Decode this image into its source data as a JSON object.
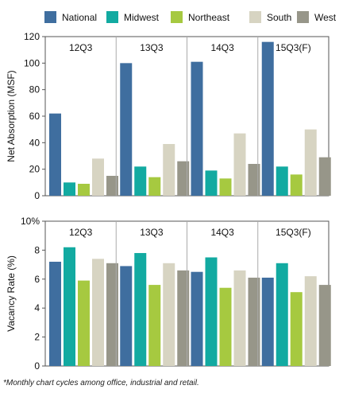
{
  "legend": [
    {
      "name": "National",
      "color": "#3f6e9f"
    },
    {
      "name": "Midwest",
      "color": "#12aaa1"
    },
    {
      "name": "Northeast",
      "color": "#a6c940"
    },
    {
      "name": "South",
      "color": "#d7d4c2"
    },
    {
      "name": "West",
      "color": "#979689"
    }
  ],
  "footnote": "*Monthly chart cycles among office, industrial and retail.",
  "chart_data": [
    {
      "type": "bar",
      "ylabel": "Net Absorption (MSF)",
      "ylim": [
        0,
        120
      ],
      "yticks": [
        0,
        20,
        40,
        60,
        80,
        100,
        120
      ],
      "categories": [
        "12Q3",
        "13Q3",
        "14Q3",
        "15Q3(F)"
      ],
      "series": [
        {
          "name": "National",
          "values": [
            62,
            100,
            101,
            116
          ]
        },
        {
          "name": "Midwest",
          "values": [
            10,
            22,
            19,
            22
          ]
        },
        {
          "name": "Northeast",
          "values": [
            9,
            14,
            13,
            16
          ]
        },
        {
          "name": "South",
          "values": [
            28,
            39,
            47,
            50
          ]
        },
        {
          "name": "West",
          "values": [
            15,
            26,
            24,
            29
          ]
        }
      ],
      "grid": false,
      "legend_position": "top"
    },
    {
      "type": "bar",
      "ylabel": "Vacancy Rate (%)",
      "ylim": [
        0,
        10
      ],
      "yticks": [
        0,
        2,
        4,
        6,
        8
      ],
      "ytick_top_label": "10%",
      "categories": [
        "12Q3",
        "13Q3",
        "14Q3",
        "15Q3(F)"
      ],
      "series": [
        {
          "name": "National",
          "values": [
            7.2,
            6.9,
            6.5,
            6.1
          ]
        },
        {
          "name": "Midwest",
          "values": [
            8.2,
            7.8,
            7.5,
            7.1
          ]
        },
        {
          "name": "Northeast",
          "values": [
            5.9,
            5.6,
            5.4,
            5.1
          ]
        },
        {
          "name": "South",
          "values": [
            7.4,
            7.1,
            6.6,
            6.2
          ]
        },
        {
          "name": "West",
          "values": [
            7.1,
            6.6,
            6.1,
            5.6
          ]
        }
      ],
      "grid": false
    }
  ]
}
